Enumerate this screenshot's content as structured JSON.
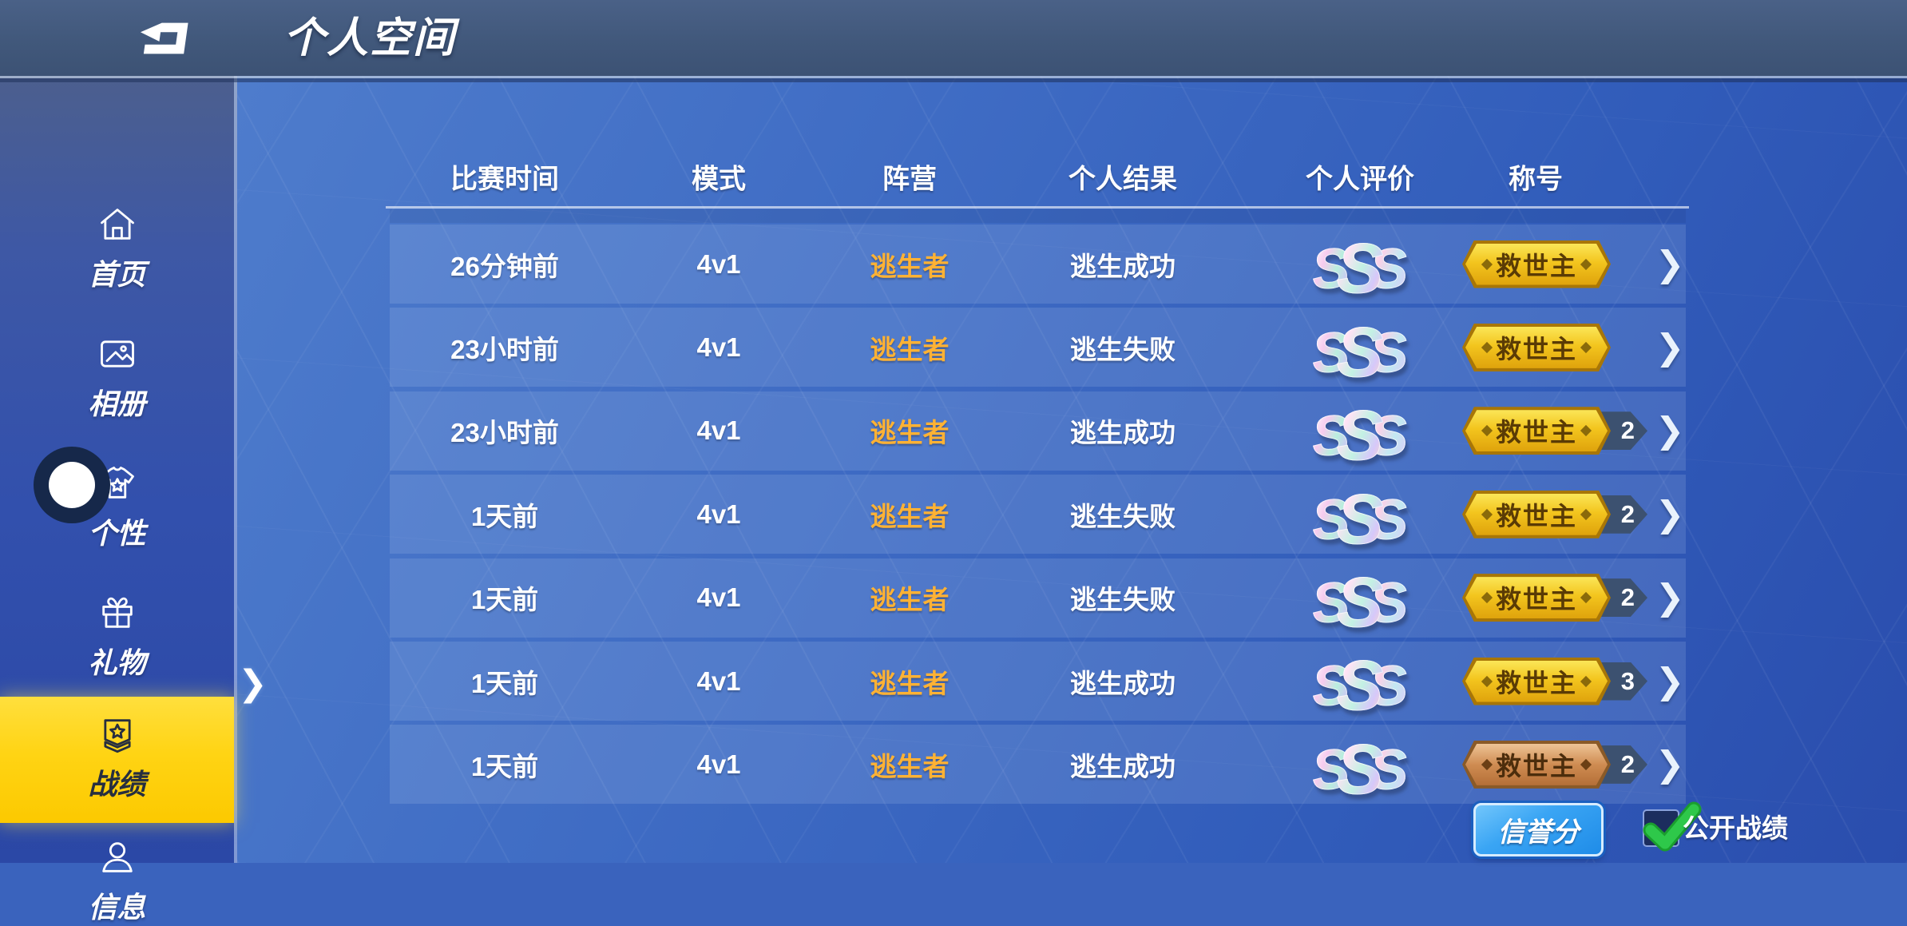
{
  "app": {
    "title": "个人空间"
  },
  "topbar": {
    "back_icon": "back-arrow-icon"
  },
  "sidebar": {
    "items": [
      {
        "id": "home",
        "label": "首页",
        "icon": "home-icon",
        "selected": false
      },
      {
        "id": "album",
        "label": "相册",
        "icon": "album-icon",
        "selected": false
      },
      {
        "id": "personality",
        "label": "个性",
        "icon": "tshirt-icon",
        "selected": false
      },
      {
        "id": "gift",
        "label": "礼物",
        "icon": "gift-icon",
        "selected": false
      },
      {
        "id": "records",
        "label": "战绩",
        "icon": "medal-icon",
        "selected": true
      },
      {
        "id": "info",
        "label": "信息",
        "icon": "person-icon",
        "selected": false
      }
    ],
    "selected_pointer_icon": "chevron-right-icon"
  },
  "table": {
    "headers": [
      "比赛时间",
      "模式",
      "阵营",
      "个人结果",
      "个人评价",
      "称号"
    ],
    "rows": [
      {
        "time": "26分钟前",
        "mode": "4v1",
        "faction": "逃生者",
        "result": "逃生成功",
        "rating": "SSS",
        "title": "救世主",
        "title_count": "",
        "title_tier": "gold"
      },
      {
        "time": "23小时前",
        "mode": "4v1",
        "faction": "逃生者",
        "result": "逃生失败",
        "rating": "SSS",
        "title": "救世主",
        "title_count": "",
        "title_tier": "gold"
      },
      {
        "time": "23小时前",
        "mode": "4v1",
        "faction": "逃生者",
        "result": "逃生成功",
        "rating": "SSS",
        "title": "救世主",
        "title_count": "2",
        "title_tier": "gold"
      },
      {
        "time": "1天前",
        "mode": "4v1",
        "faction": "逃生者",
        "result": "逃生失败",
        "rating": "SSS",
        "title": "救世主",
        "title_count": "2",
        "title_tier": "gold"
      },
      {
        "time": "1天前",
        "mode": "4v1",
        "faction": "逃生者",
        "result": "逃生失败",
        "rating": "SSS",
        "title": "救世主",
        "title_count": "2",
        "title_tier": "gold"
      },
      {
        "time": "1天前",
        "mode": "4v1",
        "faction": "逃生者",
        "result": "逃生成功",
        "rating": "SSS",
        "title": "救世主",
        "title_count": "3",
        "title_tier": "gold"
      },
      {
        "time": "1天前",
        "mode": "4v1",
        "faction": "逃生者",
        "result": "逃生成功",
        "rating": "SSS",
        "title": "救世主",
        "title_count": "2",
        "title_tier": "bronze"
      }
    ],
    "row_chevron_icon": "chevron-right-icon"
  },
  "footer": {
    "credit_button": "信誉分",
    "public_toggle_label": "公开战绩",
    "public_toggle_checked": true,
    "check_icon": "check-icon"
  },
  "colors": {
    "faction_orange": "#FFB234",
    "selected_yellow": "#FFD414",
    "badge_gold": "#F3C51E",
    "badge_bronze": "#CF8C52",
    "credit_button_blue": "#2F9CF1",
    "check_green": "#2EC84A",
    "topbar_blue": "#41587B",
    "main_blue": "#3A63BD"
  }
}
